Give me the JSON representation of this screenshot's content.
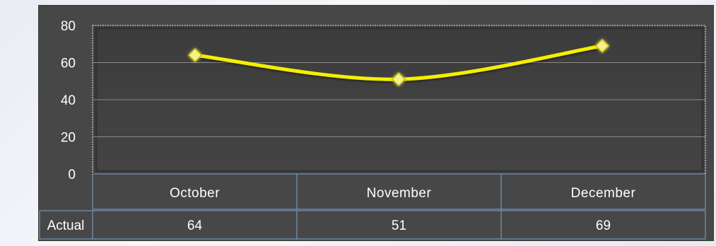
{
  "chart_data": {
    "type": "line",
    "categories": [
      "October",
      "November",
      "December"
    ],
    "series": [
      {
        "name": "Actual",
        "values": [
          64,
          51,
          69
        ]
      }
    ],
    "ylim": [
      0,
      80
    ],
    "yticks": [
      "0",
      "20",
      "40",
      "60",
      "80"
    ],
    "grid": true,
    "smooth": true,
    "line_color": "#f5ef00",
    "marker": "diamond",
    "marker_color": "#f6f08a",
    "background_color": "#474747",
    "plot_background_color": "#404040",
    "table_row_label": "Actual",
    "table_values": [
      "64",
      "51",
      "69"
    ]
  }
}
